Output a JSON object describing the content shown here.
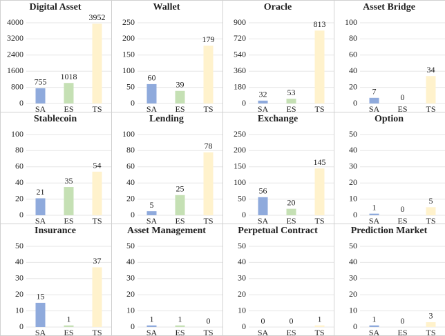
{
  "chart_data": [
    {
      "type": "bar",
      "title": "Digital Asset",
      "categories": [
        "SA",
        "ES",
        "TS"
      ],
      "values": [
        755,
        1018,
        3952
      ],
      "colors": [
        "#8faadc",
        "#c5e0b4",
        "#fff2cc"
      ],
      "ylim": [
        0,
        4000
      ],
      "yticks": [
        0,
        800,
        1600,
        2400,
        3200,
        4000
      ],
      "grid": true
    },
    {
      "type": "bar",
      "title": "Wallet",
      "categories": [
        "SA",
        "ES",
        "TS"
      ],
      "values": [
        60,
        39,
        179
      ],
      "colors": [
        "#8faadc",
        "#c5e0b4",
        "#fff2cc"
      ],
      "ylim": [
        0,
        250
      ],
      "yticks": [
        0,
        50,
        100,
        150,
        200,
        250
      ],
      "grid": true
    },
    {
      "type": "bar",
      "title": "Oracle",
      "categories": [
        "SA",
        "ES",
        "TS"
      ],
      "values": [
        32,
        53,
        813
      ],
      "colors": [
        "#8faadc",
        "#c5e0b4",
        "#fff2cc"
      ],
      "ylim": [
        0,
        900
      ],
      "yticks": [
        0,
        180,
        360,
        540,
        720,
        900
      ],
      "grid": true
    },
    {
      "type": "bar",
      "title": "Asset Bridge",
      "categories": [
        "SA",
        "ES",
        "TS"
      ],
      "values": [
        7,
        0,
        34
      ],
      "colors": [
        "#8faadc",
        "#c5e0b4",
        "#fff2cc"
      ],
      "ylim": [
        0,
        100
      ],
      "yticks": [
        0,
        20,
        40,
        60,
        80,
        100
      ],
      "grid": true
    },
    {
      "type": "bar",
      "title": "Stablecoin",
      "categories": [
        "SA",
        "ES",
        "TS"
      ],
      "values": [
        21,
        35,
        54
      ],
      "colors": [
        "#8faadc",
        "#c5e0b4",
        "#fff2cc"
      ],
      "ylim": [
        0,
        100
      ],
      "yticks": [
        0,
        20,
        40,
        60,
        80,
        100
      ],
      "grid": true
    },
    {
      "type": "bar",
      "title": "Lending",
      "categories": [
        "SA",
        "ES",
        "TS"
      ],
      "values": [
        5,
        25,
        78
      ],
      "colors": [
        "#8faadc",
        "#c5e0b4",
        "#fff2cc"
      ],
      "ylim": [
        0,
        100
      ],
      "yticks": [
        0,
        20,
        40,
        60,
        80,
        100
      ],
      "grid": true
    },
    {
      "type": "bar",
      "title": "Exchange",
      "categories": [
        "SA",
        "ES",
        "TS"
      ],
      "values": [
        56,
        20,
        145
      ],
      "colors": [
        "#8faadc",
        "#c5e0b4",
        "#fff2cc"
      ],
      "ylim": [
        0,
        250
      ],
      "yticks": [
        0,
        50,
        100,
        150,
        200,
        250
      ],
      "grid": true
    },
    {
      "type": "bar",
      "title": "Option",
      "categories": [
        "SA",
        "ES",
        "TS"
      ],
      "values": [
        1,
        0,
        5
      ],
      "colors": [
        "#8faadc",
        "#c5e0b4",
        "#fff2cc"
      ],
      "ylim": [
        0,
        50
      ],
      "yticks": [
        0,
        10,
        20,
        30,
        40,
        50
      ],
      "grid": true
    },
    {
      "type": "bar",
      "title": "Insurance",
      "categories": [
        "SA",
        "ES",
        "TS"
      ],
      "values": [
        15,
        1,
        37
      ],
      "colors": [
        "#8faadc",
        "#c5e0b4",
        "#fff2cc"
      ],
      "ylim": [
        0,
        50
      ],
      "yticks": [
        0,
        10,
        20,
        30,
        40,
        50
      ],
      "grid": true
    },
    {
      "type": "bar",
      "title": "Asset Management",
      "categories": [
        "SA",
        "ES",
        "TS"
      ],
      "values": [
        1,
        1,
        0
      ],
      "colors": [
        "#8faadc",
        "#c5e0b4",
        "#fff2cc"
      ],
      "ylim": [
        0,
        50
      ],
      "yticks": [
        0,
        10,
        20,
        30,
        40,
        50
      ],
      "grid": true
    },
    {
      "type": "bar",
      "title": "Perpetual Contract",
      "categories": [
        "SA",
        "ES",
        "TS"
      ],
      "values": [
        0,
        0,
        1
      ],
      "colors": [
        "#8faadc",
        "#c5e0b4",
        "#fff2cc"
      ],
      "ylim": [
        0,
        50
      ],
      "yticks": [
        0,
        10,
        20,
        30,
        40,
        50
      ],
      "grid": true
    },
    {
      "type": "bar",
      "title": "Prediction Market",
      "categories": [
        "SA",
        "ES",
        "TS"
      ],
      "values": [
        1,
        0,
        3
      ],
      "colors": [
        "#8faadc",
        "#c5e0b4",
        "#fff2cc"
      ],
      "ylim": [
        0,
        50
      ],
      "yticks": [
        0,
        10,
        20,
        30,
        40,
        50
      ],
      "grid": true
    }
  ]
}
